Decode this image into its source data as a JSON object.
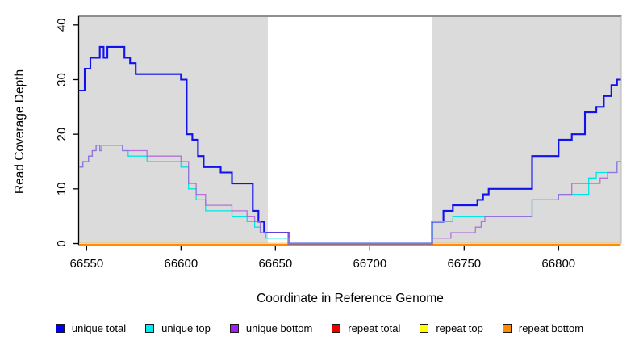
{
  "chart_data": {
    "type": "line",
    "subtype": "step",
    "title": "",
    "xlabel": "Coordinate in Reference Genome",
    "ylabel": "Read Coverage Depth",
    "x_ticks": [
      66550,
      66600,
      66650,
      66700,
      66750,
      66800
    ],
    "y_ticks": [
      0,
      10,
      20,
      30,
      40
    ],
    "x_domain": [
      66546,
      66833
    ],
    "y_domain": [
      0,
      41.6
    ],
    "grid": false,
    "legend_position": "bottom",
    "shaded_regions": [
      {
        "name": "left-repeat-region",
        "from": 66546,
        "to": 66646,
        "color": "#dbdbdb"
      },
      {
        "name": "right-repeat-region",
        "from": 66733,
        "to": 66833,
        "color": "#dbdbdb"
      }
    ],
    "series": [
      {
        "name": "repeat total",
        "color": "#ee0000",
        "legend_color": "#ee0000",
        "width": 1.3,
        "points": [
          [
            66546,
            0
          ],
          [
            66833,
            0
          ]
        ]
      },
      {
        "name": "repeat top",
        "color": "#ffff00",
        "legend_color": "#ffff00",
        "width": 1.3,
        "points": [
          [
            66546,
            0
          ],
          [
            66833,
            0
          ]
        ]
      },
      {
        "name": "repeat bottom",
        "color": "#ff8c00",
        "legend_color": "#ff8c00",
        "width": 2.1,
        "points": [
          [
            66546,
            0
          ],
          [
            66833,
            0
          ]
        ]
      },
      {
        "name": "unique total",
        "color": "#1212ee",
        "legend_color": "#0000ee",
        "width": 2.1,
        "points": [
          [
            66546,
            28
          ],
          [
            66549,
            32
          ],
          [
            66552,
            34
          ],
          [
            66557,
            36
          ],
          [
            66559,
            34
          ],
          [
            66561,
            36
          ],
          [
            66570,
            34
          ],
          [
            66573,
            33
          ],
          [
            66576,
            31
          ],
          [
            66600,
            30
          ],
          [
            66603,
            20
          ],
          [
            66606,
            19
          ],
          [
            66609,
            16
          ],
          [
            66612,
            14
          ],
          [
            66621,
            13
          ],
          [
            66627,
            11
          ],
          [
            66638,
            6
          ],
          [
            66641,
            4
          ],
          [
            66644,
            2
          ],
          [
            66657,
            0
          ],
          [
            66733,
            4
          ],
          [
            66739,
            6
          ],
          [
            66744,
            7
          ],
          [
            66757,
            8
          ],
          [
            66760,
            9
          ],
          [
            66763,
            10
          ],
          [
            66786,
            16
          ],
          [
            66800,
            19
          ],
          [
            66807,
            20
          ],
          [
            66814,
            24
          ],
          [
            66820,
            25
          ],
          [
            66824,
            27
          ],
          [
            66828,
            29
          ],
          [
            66831,
            30
          ]
        ]
      },
      {
        "name": "unique top",
        "color": "#00e5e5",
        "legend_color": "#00eeee",
        "width": 1.3,
        "points": [
          [
            66546,
            14
          ],
          [
            66548,
            15
          ],
          [
            66551,
            16
          ],
          [
            66553,
            17
          ],
          [
            66555,
            18
          ],
          [
            66557,
            17
          ],
          [
            66558,
            18
          ],
          [
            66569,
            17
          ],
          [
            66572,
            16
          ],
          [
            66582,
            15
          ],
          [
            66600,
            14
          ],
          [
            66604,
            10
          ],
          [
            66608,
            8
          ],
          [
            66613,
            6
          ],
          [
            66627,
            5
          ],
          [
            66635,
            4
          ],
          [
            66639,
            3
          ],
          [
            66642,
            2
          ],
          [
            66645,
            1
          ],
          [
            66657,
            0
          ],
          [
            66733,
            4
          ],
          [
            66744,
            5
          ],
          [
            66786,
            8
          ],
          [
            66800,
            9
          ],
          [
            66816,
            12
          ],
          [
            66820,
            13
          ],
          [
            66826,
            13
          ],
          [
            66831,
            15
          ]
        ]
      },
      {
        "name": "unique bottom",
        "color": "#ad5edb",
        "legend_color": "#a020f0",
        "width": 1.3,
        "points": [
          [
            66546,
            14
          ],
          [
            66548,
            15
          ],
          [
            66551,
            16
          ],
          [
            66553,
            17
          ],
          [
            66555,
            18
          ],
          [
            66557,
            17
          ],
          [
            66558,
            18
          ],
          [
            66569,
            17
          ],
          [
            66575,
            17
          ],
          [
            66582,
            16
          ],
          [
            66600,
            15
          ],
          [
            66604,
            11
          ],
          [
            66608,
            9
          ],
          [
            66613,
            7
          ],
          [
            66627,
            6
          ],
          [
            66635,
            5
          ],
          [
            66639,
            4
          ],
          [
            66642,
            2
          ],
          [
            66657,
            0
          ],
          [
            66733,
            1
          ],
          [
            66743,
            2
          ],
          [
            66756,
            3
          ],
          [
            66759,
            4
          ],
          [
            66761,
            5
          ],
          [
            66786,
            8
          ],
          [
            66800,
            9
          ],
          [
            66807,
            11
          ],
          [
            66818,
            11
          ],
          [
            66822,
            12
          ],
          [
            66826,
            13
          ],
          [
            66831,
            15
          ]
        ]
      }
    ]
  }
}
